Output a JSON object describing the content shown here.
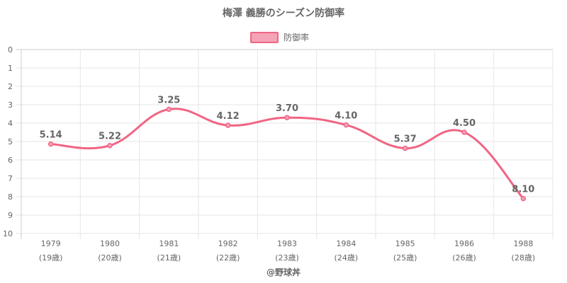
{
  "chart_data": {
    "type": "line",
    "title": "梅澤 義勝のシーズン防御率",
    "categories": [
      "1979",
      "1980",
      "1981",
      "1982",
      "1983",
      "1984",
      "1985",
      "1986",
      "1988"
    ],
    "category_sublabels": [
      "(19歳)",
      "(20歳)",
      "(21歳)",
      "(22歳)",
      "(23歳)",
      "(24歳)",
      "(25歳)",
      "(26歳)",
      "(28歳)"
    ],
    "series": [
      {
        "name": "防御率",
        "values": [
          5.14,
          5.22,
          3.25,
          4.12,
          3.7,
          4.1,
          5.37,
          4.5,
          8.1
        ],
        "labels": [
          "5.14",
          "5.22",
          "3.25",
          "4.12",
          "3.70",
          "4.10",
          "5.37",
          "4.50",
          "8.10"
        ],
        "color": "#f06584",
        "fill": "#f5a3b6"
      }
    ],
    "ylim": [
      0,
      10
    ],
    "y_reversed": true,
    "yticks": [
      0,
      1,
      2,
      3,
      4,
      5,
      6,
      7,
      8,
      9,
      10
    ],
    "grid": true,
    "legend": "top-center",
    "xlabel": "",
    "ylabel": ""
  },
  "footer": "@野球丼"
}
